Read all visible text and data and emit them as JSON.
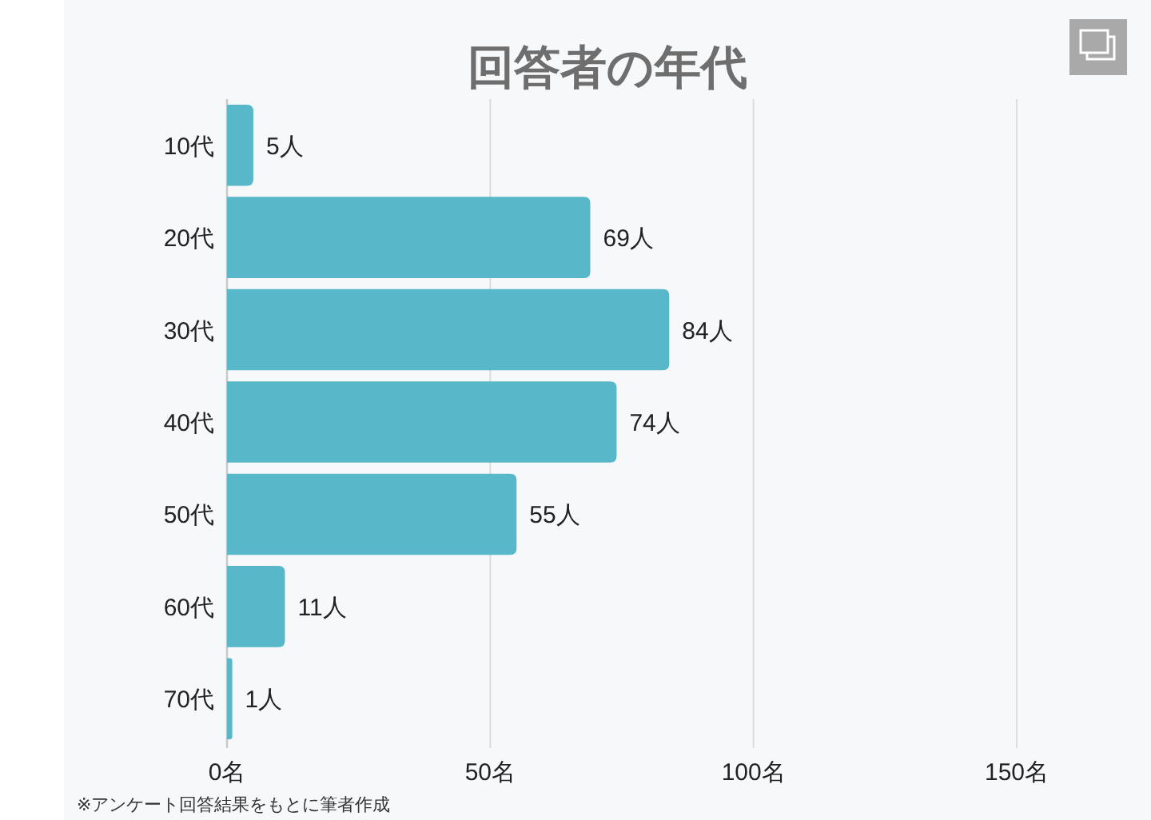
{
  "chart_data": {
    "type": "bar",
    "orientation": "horizontal",
    "title": "回答者の年代",
    "categories": [
      "10代",
      "20代",
      "30代",
      "40代",
      "50代",
      "60代",
      "70代"
    ],
    "values": [
      5,
      69,
      84,
      74,
      55,
      11,
      1
    ],
    "value_labels": [
      "5人",
      "69人",
      "84人",
      "74人",
      "55人",
      "11人",
      "1人"
    ],
    "color": "#58b7c8",
    "xlim": [
      0,
      150
    ],
    "xticks": [
      {
        "value": 0,
        "label": "0名"
      },
      {
        "value": 50,
        "label": "50名"
      },
      {
        "value": 100,
        "label": "100名"
      },
      {
        "value": 150,
        "label": "150名"
      }
    ],
    "grid": "x",
    "annotations": [
      "※アンケート回答結果をもとに筆者作成"
    ]
  }
}
